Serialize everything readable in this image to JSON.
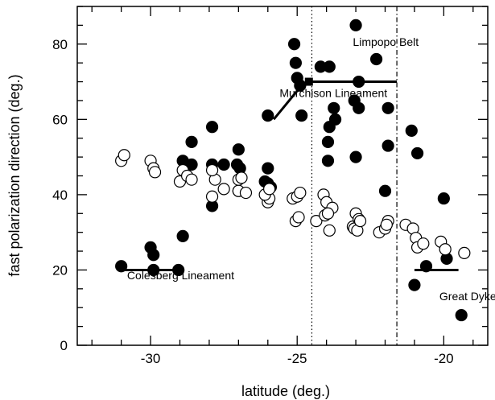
{
  "chart_data": {
    "type": "scatter",
    "title": "",
    "xlabel": "latitude (deg.)",
    "ylabel": "fast polarization direction (deg.)",
    "xlim": [
      -32.5,
      -18.5
    ],
    "ylim": [
      0,
      90
    ],
    "xticks": [
      -30,
      -25,
      -20
    ],
    "yticks": [
      0,
      20,
      40,
      60,
      80
    ],
    "grid": false,
    "legend": "none",
    "series": [
      {
        "marker": "filled-circle",
        "points": [
          [
            -31,
            21
          ],
          [
            -30,
            26
          ],
          [
            -29.9,
            24
          ],
          [
            -29.9,
            20
          ],
          [
            -29.05,
            20
          ],
          [
            -28.9,
            29
          ],
          [
            -28.9,
            49
          ],
          [
            -28.6,
            48
          ],
          [
            -28.6,
            54
          ],
          [
            -27.9,
            58
          ],
          [
            -27.9,
            48
          ],
          [
            -27.9,
            37
          ],
          [
            -27.5,
            48
          ],
          [
            -27,
            52
          ],
          [
            -27.05,
            48
          ],
          [
            -26.95,
            47
          ],
          [
            -27,
            41
          ],
          [
            -26,
            47
          ],
          [
            -26.1,
            43.5
          ],
          [
            -26,
            43
          ],
          [
            -25.9,
            42
          ],
          [
            -26,
            61
          ],
          [
            -25.1,
            80
          ],
          [
            -25.05,
            75
          ],
          [
            -25,
            71
          ],
          [
            -24.9,
            69
          ],
          [
            -24.85,
            61
          ],
          [
            -24.2,
            74
          ],
          [
            -23.9,
            74
          ],
          [
            -23.95,
            54
          ],
          [
            -23.95,
            49
          ],
          [
            -23.9,
            58
          ],
          [
            -23.75,
            63
          ],
          [
            -23.7,
            60
          ],
          [
            -23,
            85
          ],
          [
            -22.9,
            70
          ],
          [
            -23.05,
            65
          ],
          [
            -22.9,
            63
          ],
          [
            -23,
            50
          ],
          [
            -22.3,
            76
          ],
          [
            -21.9,
            63
          ],
          [
            -21.9,
            53
          ],
          [
            -22,
            41
          ],
          [
            -21.1,
            57
          ],
          [
            -20.9,
            51
          ],
          [
            -21,
            16
          ],
          [
            -20.6,
            21
          ],
          [
            -20,
            39
          ],
          [
            -19.9,
            23
          ],
          [
            -19.4,
            8
          ]
        ]
      },
      {
        "marker": "open-circle",
        "points": [
          [
            -31,
            49
          ],
          [
            -30.9,
            50.5
          ],
          [
            -30,
            49
          ],
          [
            -29.9,
            47
          ],
          [
            -29.85,
            46
          ],
          [
            -29,
            43.5
          ],
          [
            -28.9,
            46.5
          ],
          [
            -28.75,
            45
          ],
          [
            -28.6,
            44
          ],
          [
            -27.9,
            39.5
          ],
          [
            -27.8,
            44
          ],
          [
            -27.9,
            46.5
          ],
          [
            -27.5,
            41.5
          ],
          [
            -27,
            41
          ],
          [
            -27,
            44
          ],
          [
            -26.9,
            44.5
          ],
          [
            -26.75,
            40.5
          ],
          [
            -26,
            38
          ],
          [
            -25.95,
            39
          ],
          [
            -26.1,
            40
          ],
          [
            -25.95,
            41.5
          ],
          [
            -25.15,
            39
          ],
          [
            -25.05,
            33
          ],
          [
            -24.95,
            34
          ],
          [
            -25,
            39.5
          ],
          [
            -24.9,
            40.5
          ],
          [
            -24.35,
            33
          ],
          [
            -24.1,
            40
          ],
          [
            -24,
            38
          ],
          [
            -24.05,
            34.5
          ],
          [
            -23.9,
            30.5
          ],
          [
            -23.8,
            36.5
          ],
          [
            -23.95,
            35
          ],
          [
            -23.1,
            31.5
          ],
          [
            -23,
            35
          ],
          [
            -23.05,
            31
          ],
          [
            -22.9,
            33.5
          ],
          [
            -22.95,
            30.5
          ],
          [
            -22.85,
            33
          ],
          [
            -22.2,
            30
          ],
          [
            -22,
            31
          ],
          [
            -21.9,
            33
          ],
          [
            -21.95,
            32
          ],
          [
            -21.3,
            32
          ],
          [
            -21.05,
            31
          ],
          [
            -20.95,
            28.5
          ],
          [
            -20.9,
            26
          ],
          [
            -20.7,
            27
          ],
          [
            -20.1,
            27.5
          ],
          [
            -19.95,
            25.5
          ],
          [
            -19.3,
            24.5
          ]
        ]
      }
    ],
    "vertical_lines": [
      {
        "x": -24.5,
        "style": "dotted"
      },
      {
        "x": -21.6,
        "style": "dashdot"
      }
    ],
    "segments": [
      {
        "x1": -31,
        "y1": 20,
        "x2": -28.9,
        "y2": 20
      },
      {
        "x1": -24.7,
        "y1": 70,
        "x2": -21.6,
        "y2": 70
      },
      {
        "x1": -21,
        "y1": 20,
        "x2": -19.5,
        "y2": 20
      },
      {
        "x1": -25.8,
        "y1": 60,
        "x2": -24.85,
        "y2": 69
      }
    ],
    "square_markers": [
      {
        "x": -24.6,
        "y": 70
      }
    ],
    "annotations": [
      {
        "text": "Colesberg Lineament",
        "x": -30.8,
        "y": 17.5
      },
      {
        "text": "Murchison Lineament",
        "x": -25.6,
        "y": 66
      },
      {
        "text": "Limpopo Belt",
        "x": -23.1,
        "y": 79.5
      },
      {
        "text": "Great Dyke",
        "x": -20.15,
        "y": 12
      }
    ]
  }
}
